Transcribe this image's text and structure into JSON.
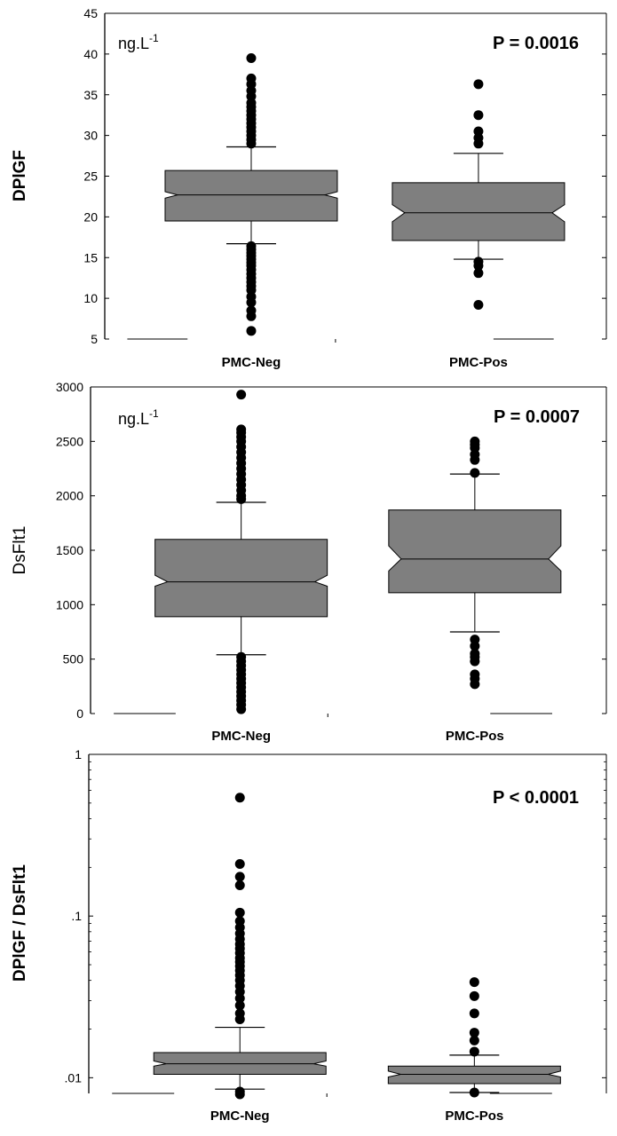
{
  "chart_data": [
    {
      "type": "boxplot",
      "ylabel": "DPlGF",
      "unit": "ng.L",
      "unit_exponent": "-1",
      "p_value": "P = 0.0016",
      "ylim": [
        5,
        45
      ],
      "yticks": [
        5,
        10,
        15,
        20,
        25,
        30,
        35,
        40,
        45
      ],
      "ytick_labels": [
        "5",
        "10",
        "15",
        "20",
        "25",
        "30",
        "35",
        "40",
        "45"
      ],
      "categories": [
        "PMC-Neg",
        "PMC-Pos"
      ],
      "groups": [
        {
          "name": "PMC-Neg",
          "whisker_low": 16.7,
          "q1": 19.5,
          "median": 22.7,
          "q3": 25.7,
          "whisker_high": 28.6,
          "notch_low": 22.3,
          "notch_high": 23.1,
          "outliers": [
            39.5,
            37.0,
            36.3,
            35.5,
            34.8,
            34.0,
            33.5,
            33.0,
            32.5,
            32.0,
            31.5,
            31.0,
            30.5,
            30.0,
            29.5,
            29.0,
            16.4,
            16.0,
            15.6,
            15.2,
            14.8,
            14.4,
            14.0,
            13.5,
            13.0,
            12.5,
            12.0,
            11.5,
            11.0,
            10.2,
            9.5,
            8.5,
            7.8,
            6.0
          ]
        },
        {
          "name": "PMC-Pos",
          "whisker_low": 14.8,
          "q1": 17.1,
          "median": 20.5,
          "q3": 24.2,
          "whisker_high": 27.8,
          "notch_low": 19.4,
          "notch_high": 21.5,
          "outliers": [
            36.3,
            32.5,
            30.5,
            29.7,
            29.0,
            14.5,
            14.0,
            13.1,
            9.2
          ]
        }
      ]
    },
    {
      "type": "boxplot",
      "ylabel": "DsFlt1",
      "unit": "ng.L",
      "unit_exponent": "-1",
      "p_value": "P = 0.0007",
      "ylim": [
        0,
        3000
      ],
      "yticks": [
        0,
        500,
        1000,
        1500,
        2000,
        2500,
        3000
      ],
      "ytick_labels": [
        "0",
        "500",
        "1000",
        "1500",
        "2000",
        "2500",
        "3000"
      ],
      "categories": [
        "PMC-Neg",
        "PMC-Pos"
      ],
      "groups": [
        {
          "name": "PMC-Neg",
          "whisker_low": 540,
          "q1": 890,
          "median": 1210,
          "q3": 1600,
          "whisker_high": 1940,
          "notch_low": 1170,
          "notch_high": 1270,
          "outliers": [
            2930,
            2610,
            2580,
            2540,
            2500,
            2450,
            2400,
            2350,
            2300,
            2250,
            2200,
            2150,
            2100,
            2050,
            2000,
            1970,
            520,
            480,
            440,
            400,
            360,
            320,
            280,
            240,
            200,
            160,
            120,
            80,
            40
          ]
        },
        {
          "name": "PMC-Pos",
          "whisker_low": 750,
          "q1": 1110,
          "median": 1420,
          "q3": 1870,
          "whisker_high": 2200,
          "notch_low": 1310,
          "notch_high": 1540,
          "outliers": [
            2500,
            2470,
            2440,
            2380,
            2330,
            2210,
            680,
            620,
            550,
            520,
            480,
            360,
            320,
            270
          ]
        }
      ]
    },
    {
      "type": "boxplot",
      "yscale": "log",
      "ylabel": "DPlGF / DsFlt1",
      "p_value": "P < 0.0001",
      "ylim": [
        0.008,
        1
      ],
      "yticks": [
        0.01,
        0.1,
        1
      ],
      "ytick_labels": [
        ".01",
        ".1",
        "1"
      ],
      "categories": [
        "PMC-Neg",
        "PMC-Pos"
      ],
      "groups": [
        {
          "name": "PMC-Neg",
          "whisker_low": 0.0085,
          "q1": 0.0105,
          "median": 0.0122,
          "q3": 0.0143,
          "whisker_high": 0.0205,
          "notch_low": 0.0118,
          "notch_high": 0.0127,
          "outliers": [
            0.54,
            0.21,
            0.175,
            0.155,
            0.105,
            0.093,
            0.085,
            0.078,
            0.072,
            0.067,
            0.063,
            0.059,
            0.055,
            0.052,
            0.049,
            0.046,
            0.043,
            0.04,
            0.037,
            0.034,
            0.031,
            0.028,
            0.025,
            0.023,
            0.0082,
            0.0079
          ]
        },
        {
          "name": "PMC-Pos",
          "whisker_low": 0.0081,
          "q1": 0.0092,
          "median": 0.0105,
          "q3": 0.0118,
          "whisker_high": 0.0138,
          "notch_low": 0.0101,
          "notch_high": 0.011,
          "outliers": [
            0.039,
            0.032,
            0.025,
            0.019,
            0.017,
            0.0145,
            0.0081
          ]
        }
      ]
    }
  ]
}
